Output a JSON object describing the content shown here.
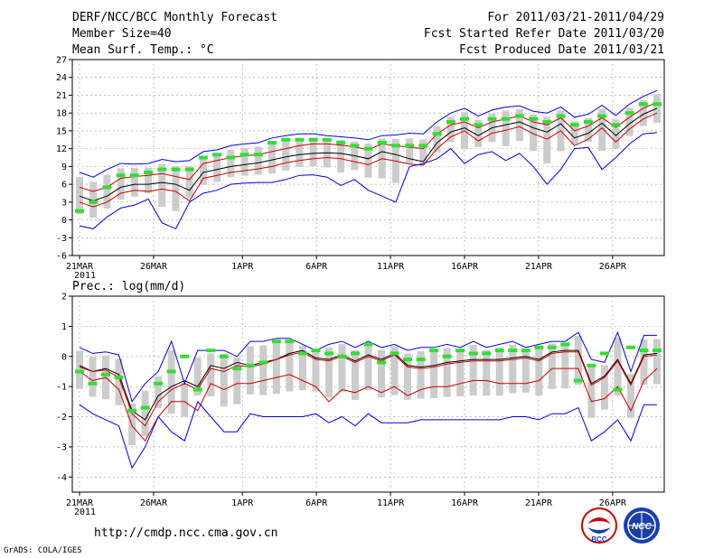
{
  "header": {
    "title": "DERF/NCC/BCC Monthly Forecast",
    "member": "Member Size=40",
    "variable": "Mean Surf. Temp.: °C",
    "period": "For 2011/03/21-2011/04/29",
    "refer": "Fcst Started Refer Date 2011/03/20",
    "produced": "Fcst Produced Date 2011/03/21"
  },
  "footer": {
    "url": "http://cmdp.ncc.cma.gov.cn",
    "grads": "GrADS: COLA/IGES",
    "logo_bcc": "BCC",
    "logo_ncc": "NCC"
  },
  "colors": {
    "ensemble_mean": "#000000",
    "control": "#cc0000",
    "envelope": "#0000dd",
    "climatology": "#33dd33",
    "spread_box": "#cccccc"
  },
  "chart_data": [
    {
      "type": "line",
      "title": "Mean Surf. Temp.: °C",
      "x_label_year": "2011",
      "x_tick_labels": [
        "21MAR",
        "26MAR",
        "1APR",
        "6APR",
        "11APR",
        "16APR",
        "21APR",
        "26APR"
      ],
      "x_tick_days": [
        1,
        6,
        12,
        17,
        22,
        27,
        32,
        37
      ],
      "days": 40,
      "ylim": [
        -6,
        27
      ],
      "yticks": [
        -6,
        -3,
        0,
        3,
        6,
        9,
        12,
        15,
        18,
        21,
        24,
        27
      ],
      "series": [
        {
          "name": "ensemble mean",
          "values": [
            4,
            3.2,
            4,
            5.5,
            6,
            6,
            6.3,
            6,
            5,
            8,
            8.5,
            9,
            9.3,
            9.6,
            10.1,
            10.6,
            11,
            11.2,
            11.3,
            11.2,
            10.8,
            10.3,
            11.5,
            11,
            10.3,
            9.8,
            13,
            14.8,
            15.5,
            14.2,
            15.5,
            16,
            16.5,
            15.5,
            14.8,
            16.2,
            13.8,
            14.6,
            16.3,
            14.2,
            16.2,
            17.8,
            18.8
          ]
        },
        {
          "name": "control",
          "values": [
            5.5,
            4.8,
            5.5,
            7,
            7.3,
            7.5,
            7.8,
            7.3,
            6.8,
            9.5,
            10,
            10.5,
            10.8,
            11,
            11.5,
            12,
            12.5,
            12.8,
            12.8,
            12.6,
            12.3,
            11.8,
            12.8,
            12.5,
            12.2,
            12,
            14.5,
            16,
            16.5,
            15.5,
            16.5,
            17,
            17.5,
            16.5,
            16,
            17.2,
            15,
            15.8,
            17.2,
            15.6,
            17.3,
            18.8,
            19.8
          ]
        },
        {
          "name": "second member",
          "values": [
            3,
            2.2,
            3,
            4.5,
            5,
            4.8,
            5.2,
            4.8,
            3.2,
            7,
            7.5,
            8,
            8.3,
            8.6,
            9,
            9.6,
            10,
            10.3,
            10.5,
            10.3,
            9.8,
            9.3,
            10.3,
            9.9,
            9.4,
            9.2,
            12,
            14,
            15,
            13.3,
            14.6,
            15.1,
            15.7,
            14.5,
            13.6,
            15,
            12.5,
            13.6,
            15.5,
            13.1,
            15.3,
            17,
            18
          ]
        },
        {
          "name": "ensemble max",
          "values": [
            8,
            7.2,
            8.5,
            9.5,
            9.4,
            9.5,
            10.2,
            9.8,
            10,
            11.5,
            11.8,
            12.5,
            12.8,
            13,
            13.8,
            14.2,
            14.5,
            14.5,
            14.2,
            14,
            13.8,
            13.5,
            14.2,
            14.3,
            14.6,
            14.5,
            16.5,
            18,
            18.8,
            17.5,
            18.5,
            19,
            19.2,
            18.3,
            18,
            19,
            17.3,
            17.8,
            19.3,
            17.6,
            19.5,
            20.8,
            21.8
          ]
        },
        {
          "name": "ensemble min",
          "values": [
            -1,
            -1.5,
            0.5,
            2,
            2.5,
            3.5,
            -0.5,
            -1.5,
            3,
            4.5,
            5,
            6,
            6.2,
            6.3,
            6.3,
            6.8,
            7.5,
            7.6,
            7.2,
            5.8,
            6.8,
            5,
            4,
            3,
            9,
            9.5,
            10.3,
            12,
            9.5,
            11,
            11.5,
            10,
            11.2,
            9,
            6,
            8.5,
            12,
            12.2,
            8.5,
            10.5,
            12.8,
            14.5,
            14.7
          ]
        },
        {
          "name": "climatology",
          "values": [
            1.5,
            3,
            5.5,
            7.5,
            7.5,
            8,
            8.5,
            8.5,
            8.5,
            10.5,
            11,
            10.5,
            11,
            11,
            13,
            13.5,
            13.5,
            13.5,
            13.5,
            13,
            12.5,
            12,
            13,
            12.5,
            12.5,
            12.5,
            14.5,
            16.5,
            17,
            16,
            17,
            17,
            17.5,
            17,
            16.5,
            17.5,
            16,
            16.5,
            17.5,
            16,
            18,
            19.5,
            19.5
          ]
        }
      ]
    },
    {
      "type": "line",
      "title": "Prec.: log(mm/d)",
      "x_label_year": "2011",
      "x_tick_labels": [
        "21MAR",
        "26MAR",
        "1APR",
        "6APR",
        "11APR",
        "16APR",
        "21APR",
        "26APR"
      ],
      "x_tick_days": [
        1,
        6,
        12,
        17,
        22,
        27,
        32,
        37
      ],
      "days": 40,
      "ylim": [
        -4.5,
        2
      ],
      "yticks": [
        -4,
        -3,
        -2,
        -1,
        0,
        1,
        2
      ],
      "series": [
        {
          "name": "ensemble mean",
          "values": [
            -0.3,
            -0.5,
            -0.4,
            -0.6,
            -1.8,
            -2.1,
            -1.3,
            -1,
            -0.8,
            -1,
            -0.3,
            -0.4,
            -0.2,
            -0.3,
            -0.2,
            -0.1,
            0.1,
            0.2,
            -0.05,
            -0.1,
            0.05,
            -0.15,
            0.05,
            -0.1,
            0.1,
            -0.3,
            -0.35,
            -0.3,
            -0.2,
            -0.15,
            -0.1,
            -0.1,
            -0.1,
            -0.05,
            0,
            -0.1,
            0.15,
            0.2,
            0.2,
            -0.9,
            -0.65,
            -0.1,
            -0.9,
            0.05,
            0.1
          ]
        },
        {
          "name": "control",
          "values": [
            -0.35,
            -0.5,
            -0.45,
            -0.7,
            -1.9,
            -2.3,
            -1.5,
            -1.1,
            -0.9,
            -1.1,
            -0.4,
            -0.5,
            -0.3,
            -0.35,
            -0.25,
            -0.1,
            0.05,
            0.15,
            -0.1,
            -0.15,
            0,
            -0.2,
            0,
            -0.15,
            0.05,
            -0.35,
            -0.4,
            -0.35,
            -0.25,
            -0.2,
            -0.15,
            -0.15,
            -0.15,
            -0.1,
            -0.05,
            -0.15,
            0.1,
            0.15,
            0.15,
            -0.95,
            -0.7,
            -0.15,
            -0.95,
            0,
            0.05
          ]
        },
        {
          "name": "red member",
          "values": [
            -0.5,
            -0.8,
            -0.7,
            -1.1,
            -2.3,
            -2.8,
            -2,
            -1.5,
            -1.5,
            -1.8,
            -0.9,
            -1.1,
            -0.9,
            -0.9,
            -0.8,
            -0.7,
            -0.6,
            -0.8,
            -1,
            -1.5,
            -1.1,
            -1.2,
            -1,
            -1.2,
            -1,
            -1.3,
            -1.1,
            -1,
            -1,
            -0.9,
            -0.8,
            -0.8,
            -0.9,
            -0.9,
            -0.9,
            -0.8,
            -0.4,
            -0.4,
            -0.4,
            -1.5,
            -1.4,
            -1,
            -1.8,
            -0.8,
            -0.4
          ]
        },
        {
          "name": "ensemble max",
          "values": [
            0.3,
            0.1,
            0.15,
            0.05,
            -1.5,
            -0.9,
            -0.5,
            0.5,
            -0.9,
            0.2,
            0.2,
            0.2,
            0,
            0.5,
            0.5,
            0.6,
            0.6,
            0.4,
            0.2,
            0.4,
            0.5,
            0.3,
            0.5,
            0.3,
            0.4,
            0.2,
            0.3,
            0.3,
            0.4,
            0.3,
            0.5,
            0.3,
            0.4,
            0.5,
            0.3,
            0.4,
            0.5,
            0.5,
            0.8,
            -0.1,
            -0.2,
            0.8,
            -0.5,
            0.7,
            0.7
          ]
        },
        {
          "name": "ensemble min",
          "values": [
            -1.6,
            -1.9,
            -2.1,
            -2.3,
            -3.7,
            -3,
            -2,
            -2.5,
            -2.8,
            -1.5,
            -2,
            -2.5,
            -2.5,
            -1.9,
            -2,
            -2,
            -2,
            -2,
            -1.9,
            -2.2,
            -2,
            -2.3,
            -1.9,
            -2.2,
            -2.2,
            -2.2,
            -2.1,
            -2.1,
            -2.1,
            -2.1,
            -2.1,
            -2.1,
            -2.1,
            -2,
            -2,
            -2.1,
            -1.9,
            -1.9,
            -1.7,
            -2.8,
            -2.5,
            -2.1,
            -2.8,
            -1.6,
            -1.6
          ]
        },
        {
          "name": "climatology",
          "values": [
            -0.5,
            -0.9,
            -0.6,
            -0.7,
            -1.8,
            -1.7,
            -0.9,
            -0.5,
            0,
            -1.1,
            0.2,
            0,
            -0.4,
            -0.3,
            -0.2,
            0.5,
            0.5,
            0.1,
            0.2,
            0.1,
            0,
            0.1,
            0.4,
            -0.2,
            0.1,
            -0.1,
            -0.1,
            0.2,
            0,
            0.2,
            0.1,
            0.1,
            0.2,
            0.2,
            0.2,
            0.3,
            0.3,
            0.4,
            -0.8,
            -0.3,
            0.1,
            -1.1,
            0.3,
            0.2,
            0.2
          ]
        }
      ]
    }
  ]
}
